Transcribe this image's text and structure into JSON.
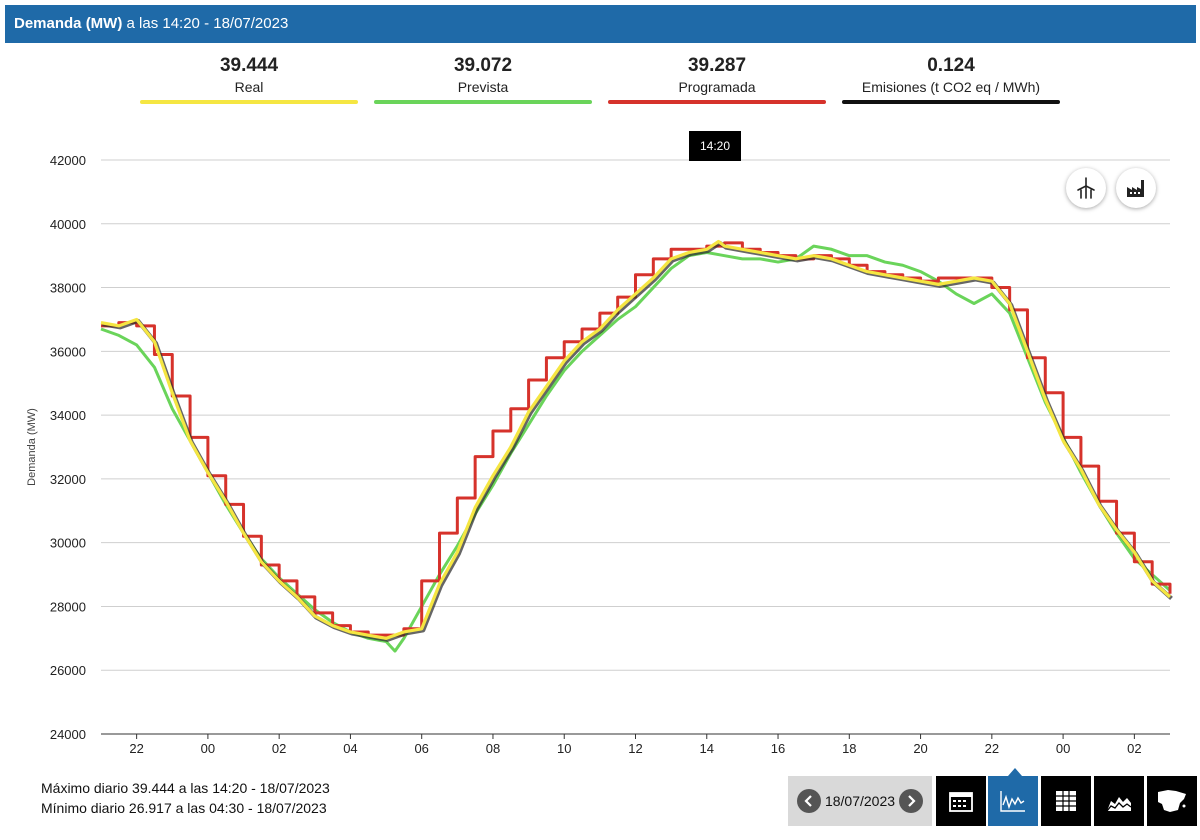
{
  "header": {
    "title_bold": "Demanda (MW)",
    "title_rest": " a las 14:20 - 18/07/2023"
  },
  "kpis": [
    {
      "value": "39.444",
      "label": "Real",
      "color": "#f5e642"
    },
    {
      "value": "39.072",
      "label": "Prevista",
      "color": "#6ad45a"
    },
    {
      "value": "39.287",
      "label": "Programada",
      "color": "#d6322b"
    },
    {
      "value": "0.124",
      "label": "Emisiones (t CO2 eq / MWh)",
      "color": "#111111"
    }
  ],
  "tooltip": "14:20",
  "icons": {
    "renewables": "wind-turbine-icon",
    "emissions": "factory-icon"
  },
  "footer": {
    "max_text": "Máximo diario 39.444 a las 14:20 - 18/07/2023",
    "min_text": "Mínimo diario 26.917 a las 04:30 - 18/07/2023",
    "date": "18/07/2023",
    "tabs": [
      "calendar-icon",
      "line-chart-icon",
      "table-icon",
      "stacked-area-icon",
      "spain-map-icon"
    ],
    "active_tab": "line-chart-icon"
  },
  "chart_data": {
    "type": "line",
    "ylabel": "Demanda (MW)",
    "ylim": [
      24000,
      42000
    ],
    "yticks": [
      24000,
      26000,
      28000,
      30000,
      32000,
      34000,
      36000,
      38000,
      40000,
      42000
    ],
    "xrange_hours": [
      -3,
      27
    ],
    "xticks": [
      {
        "h": -2,
        "label": "22"
      },
      {
        "h": 0,
        "label": "00"
      },
      {
        "h": 2,
        "label": "02"
      },
      {
        "h": 4,
        "label": "04"
      },
      {
        "h": 6,
        "label": "06"
      },
      {
        "h": 8,
        "label": "08"
      },
      {
        "h": 10,
        "label": "10"
      },
      {
        "h": 12,
        "label": "12"
      },
      {
        "h": 14,
        "label": "14"
      },
      {
        "h": 16,
        "label": "16"
      },
      {
        "h": 18,
        "label": "18"
      },
      {
        "h": 20,
        "label": "20"
      },
      {
        "h": 22,
        "label": "22"
      },
      {
        "h": 24,
        "label": "00"
      },
      {
        "h": 26,
        "label": "02"
      }
    ],
    "grid": true,
    "series": [
      {
        "name": "Prevista",
        "color": "#6ad45a",
        "style": "line",
        "x": [
          -3,
          -2.5,
          -2,
          -1.5,
          -1,
          -0.5,
          0,
          0.5,
          1,
          1.5,
          2,
          2.5,
          3,
          3.5,
          4,
          4.5,
          5,
          5.25,
          5.5,
          6,
          6.5,
          7,
          7.5,
          8,
          8.5,
          9,
          9.5,
          10,
          10.5,
          11,
          11.5,
          12,
          12.5,
          13,
          13.5,
          14,
          14.5,
          15,
          15.5,
          16,
          16.5,
          17,
          17.5,
          18,
          18.5,
          19,
          19.5,
          20,
          20.5,
          21,
          21.5,
          22,
          22.5,
          23,
          23.5,
          24,
          24.5,
          25,
          25.5,
          26,
          26.5,
          27
        ],
        "values": [
          36700,
          36500,
          36200,
          35500,
          34200,
          33200,
          32200,
          31200,
          30300,
          29500,
          28900,
          28400,
          27900,
          27500,
          27200,
          27000,
          26900,
          26600,
          27000,
          28000,
          29000,
          29900,
          30900,
          31800,
          32800,
          33700,
          34600,
          35400,
          36000,
          36500,
          37000,
          37400,
          38000,
          38600,
          39000,
          39100,
          39000,
          38900,
          38900,
          38800,
          38900,
          39300,
          39200,
          39000,
          39000,
          38800,
          38700,
          38500,
          38200,
          37800,
          37500,
          37800,
          37200,
          35800,
          34400,
          33300,
          32200,
          31200,
          30300,
          29500,
          29000,
          28500
        ]
      },
      {
        "name": "Programada",
        "color": "#d6322b",
        "style": "step",
        "x": [
          -3,
          -2.5,
          -2,
          -1.5,
          -1,
          -0.5,
          0,
          0.5,
          1,
          1.5,
          2,
          2.5,
          3,
          3.5,
          4,
          4.5,
          5,
          5.5,
          6,
          6.5,
          7,
          7.5,
          8,
          8.5,
          9,
          9.5,
          10,
          10.5,
          11,
          11.5,
          12,
          12.5,
          13,
          13.5,
          14,
          14.5,
          15,
          15.5,
          16,
          16.5,
          17,
          17.5,
          18,
          18.5,
          19,
          19.5,
          20,
          20.5,
          21,
          21.5,
          22,
          22.5,
          23,
          23.5,
          24,
          24.5,
          25,
          25.5,
          26,
          26.5,
          27
        ],
        "values": [
          36800,
          36900,
          36800,
          35900,
          34600,
          33300,
          32100,
          31200,
          30200,
          29300,
          28800,
          28300,
          27800,
          27400,
          27200,
          27100,
          27100,
          27300,
          28800,
          30300,
          31400,
          32700,
          33500,
          34200,
          35100,
          35800,
          36300,
          36700,
          37200,
          37700,
          38400,
          38900,
          39200,
          39200,
          39300,
          39400,
          39200,
          39100,
          39000,
          38900,
          39000,
          38900,
          38700,
          38500,
          38400,
          38300,
          38200,
          38300,
          38300,
          38300,
          38000,
          37300,
          35800,
          34700,
          33300,
          32400,
          31300,
          30300,
          29400,
          28700,
          28400
        ]
      },
      {
        "name": "Real",
        "color": "#f5e642",
        "style": "line",
        "x": [
          -3,
          -2.5,
          -2,
          -1.5,
          -1,
          -0.5,
          0,
          0.5,
          1,
          1.5,
          2,
          2.5,
          3,
          3.5,
          4,
          4.5,
          5,
          5.5,
          6,
          6.5,
          7,
          7.5,
          8,
          8.5,
          9,
          9.5,
          10,
          10.5,
          11,
          11.5,
          12,
          12.5,
          13,
          13.5,
          14,
          14.33,
          14.5,
          15,
          15.5,
          16,
          16.5,
          17,
          17.5,
          18,
          18.5,
          19,
          19.5,
          20,
          20.5,
          21,
          21.5,
          22,
          22.5,
          23,
          23.5,
          24,
          24.5,
          25,
          25.5,
          26,
          26.5,
          27
        ],
        "values": [
          36900,
          36800,
          37000,
          36300,
          34700,
          33200,
          32200,
          31300,
          30300,
          29400,
          28800,
          28300,
          27700,
          27400,
          27200,
          27100,
          27000,
          27200,
          27300,
          28700,
          29700,
          31100,
          32100,
          33000,
          34100,
          34900,
          35700,
          36300,
          36700,
          37300,
          37800,
          38300,
          38900,
          39100,
          39200,
          39444,
          39300,
          39200,
          39100,
          39000,
          38900,
          39000,
          38900,
          38700,
          38500,
          38400,
          38300,
          38200,
          38100,
          38200,
          38300,
          38200,
          37500,
          36000,
          34500,
          33200,
          32300,
          31200,
          30400,
          29700,
          28800,
          28300
        ]
      }
    ]
  }
}
